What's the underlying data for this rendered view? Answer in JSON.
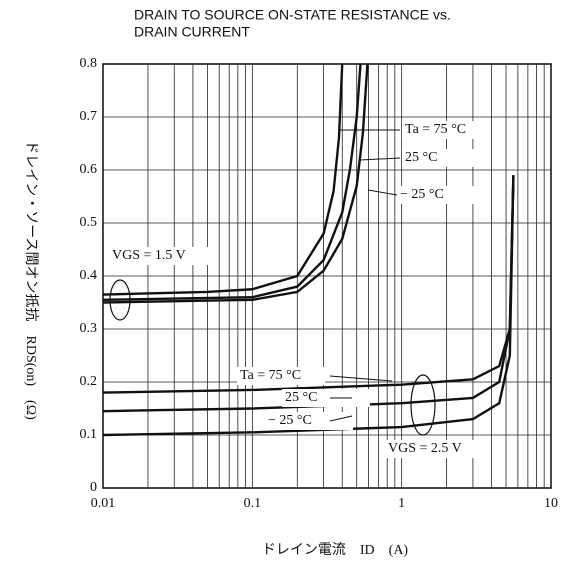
{
  "chart_data": {
    "type": "line",
    "title": [
      "DRAIN TO SOURCE ON-STATE RESISTANCE vs.",
      "DRAIN CURRENT"
    ],
    "x_label": "ドレイン電流　ID　(A)",
    "y_label": "ドレイン・ソース間オン抵抗　RDS(on)　(Ω)",
    "xlim": [
      0.01,
      10
    ],
    "xticks": [
      0.01,
      0.1,
      1,
      10
    ],
    "xscale": "log",
    "ylim": [
      0,
      0.8
    ],
    "yticks": [
      0,
      0.1,
      0.2,
      0.3,
      0.4,
      0.5,
      0.6,
      0.7,
      0.8
    ],
    "grid": true,
    "minor_grid": true,
    "color": "#111111",
    "series": [
      {
        "x": [
          0.01,
          0.05,
          0.1,
          0.2,
          0.3,
          0.35,
          0.38,
          0.4
        ],
        "values": [
          0.365,
          0.37,
          0.375,
          0.4,
          0.48,
          0.56,
          0.66,
          0.8
        ]
      },
      {
        "x": [
          0.01,
          0.1,
          0.2,
          0.3,
          0.4,
          0.45,
          0.5,
          0.53
        ],
        "values": [
          0.355,
          0.36,
          0.38,
          0.43,
          0.52,
          0.6,
          0.7,
          0.8
        ]
      },
      {
        "x": [
          0.01,
          0.1,
          0.2,
          0.3,
          0.4,
          0.5,
          0.55,
          0.59
        ],
        "values": [
          0.35,
          0.355,
          0.37,
          0.41,
          0.47,
          0.57,
          0.67,
          0.8
        ]
      },
      {
        "x": [
          0.01,
          0.1,
          1,
          3,
          4.5,
          5.3,
          5.6
        ],
        "values": [
          0.18,
          0.185,
          0.195,
          0.205,
          0.23,
          0.3,
          0.59
        ]
      },
      {
        "x": [
          0.01,
          0.1,
          1,
          3,
          4.5,
          5.3,
          5.6
        ],
        "values": [
          0.145,
          0.15,
          0.16,
          0.17,
          0.2,
          0.3,
          0.59
        ]
      },
      {
        "x": [
          0.01,
          0.1,
          1,
          3,
          4.5,
          5.3,
          5.6
        ],
        "values": [
          0.1,
          0.105,
          0.115,
          0.13,
          0.16,
          0.25,
          0.59
        ]
      }
    ],
    "annotations": [
      "Ta = 75 °C",
      "25 °C",
      "− 25 °C",
      "VGS = 1.5 V",
      "Ta = 75 °C",
      "25 °C",
      "− 25 °C",
      "VGS = 2.5 V"
    ]
  }
}
